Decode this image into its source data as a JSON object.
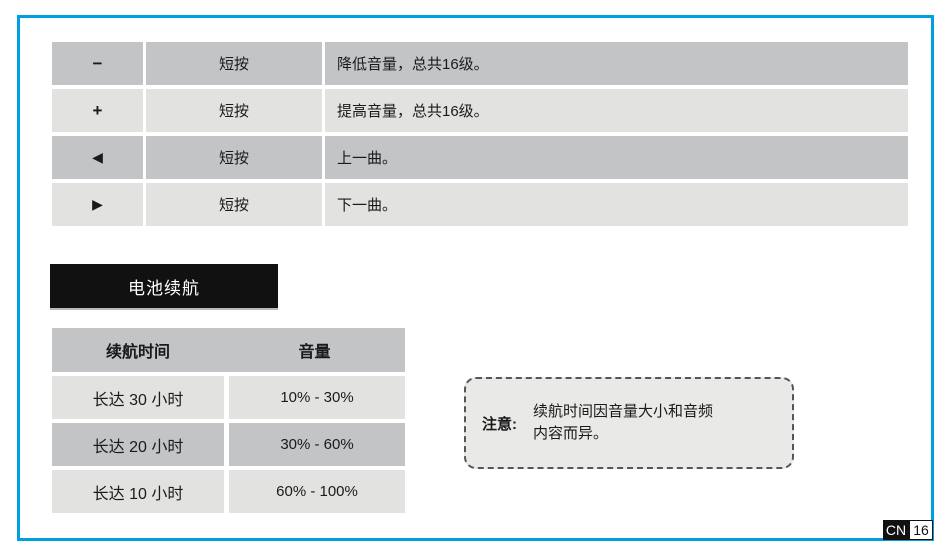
{
  "page": {
    "accent_border_color": "#00a0e0",
    "footer": {
      "language_badge": "CN",
      "page_number": "16"
    }
  },
  "controls_table": {
    "rows": [
      {
        "symbol": "−",
        "action": "短按",
        "description": "降低音量，总共16级。"
      },
      {
        "symbol": "+",
        "action": "短按",
        "description": "提高音量，总共16级。"
      },
      {
        "symbol": "◀",
        "action": "短按",
        "description": "上一曲。"
      },
      {
        "symbol": "▶",
        "action": "短按",
        "description": "下一曲。"
      }
    ]
  },
  "battery_section": {
    "title": "电池续航",
    "table": {
      "headers": [
        "续航时间",
        "音量"
      ],
      "rows": [
        {
          "duration": "长达 30 小时",
          "volume": "10% - 30%"
        },
        {
          "duration": "长达 20 小时",
          "volume": "30% - 60%"
        },
        {
          "duration": "长达 10 小时",
          "volume": "60% - 100%"
        }
      ]
    },
    "note": {
      "label": "注意:",
      "text": "续航时间因音量大小和音频内容而异。"
    }
  }
}
